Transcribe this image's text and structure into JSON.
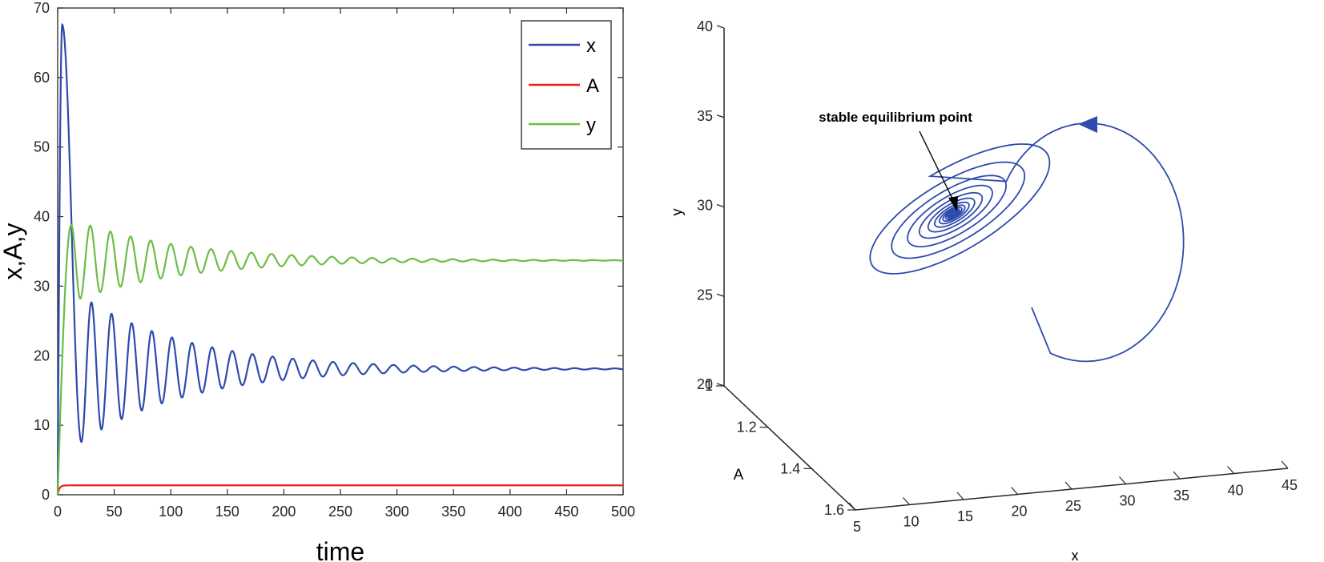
{
  "chart_data": [
    {
      "type": "line",
      "xlabel": "time",
      "ylabel": "x,A,y",
      "xlim": [
        0,
        500
      ],
      "ylim": [
        0,
        70
      ],
      "xticks": [
        "0",
        "50",
        "100",
        "150",
        "200",
        "250",
        "300",
        "350",
        "400",
        "450",
        "500"
      ],
      "yticks": [
        "0",
        "10",
        "20",
        "30",
        "40",
        "50",
        "60",
        "70"
      ],
      "legend": {
        "position": "top-right",
        "entries": [
          "x",
          "A",
          "y"
        ]
      },
      "series": [
        {
          "name": "x",
          "color": "#2e4bad",
          "t_max": 500,
          "start": 0,
          "peak_time": 4,
          "peak_value": 67.6,
          "equilibrium": 18.1,
          "first_oscillation_amplitude": 10.5,
          "decay_time": 95,
          "period": 17.8,
          "first_trough_time": 21
        },
        {
          "name": "A",
          "color": "#e8221c",
          "t_max": 500,
          "start": 0,
          "equilibrium": 1.35
        },
        {
          "name": "y",
          "color": "#6cbd45",
          "t_max": 500,
          "start": 0,
          "peak_time": 12,
          "peak_value": 38.8,
          "equilibrium": 33.7,
          "first_oscillation_amplitude": 5.5,
          "decay_time": 95,
          "period": 17.8,
          "first_trough_time": 20
        }
      ]
    },
    {
      "type": "line3d",
      "xlabel": "x",
      "ylabel": "A",
      "zlabel": "y",
      "xlim": [
        5,
        45
      ],
      "ylim": [
        1,
        1.6
      ],
      "zlim": [
        20,
        40
      ],
      "xticks": [
        "5",
        "10",
        "15",
        "20",
        "25",
        "30",
        "35",
        "40",
        "45"
      ],
      "yticks": [
        "1",
        "1.2",
        "1.4",
        "1.6"
      ],
      "zticks": [
        "20",
        "25",
        "30",
        "35",
        "40"
      ],
      "annotation": "stable equilibrium point",
      "equilibrium_point": {
        "x": 18.1,
        "A": 1.35,
        "y": 33.7
      },
      "series": [
        {
          "name": "trajectory",
          "color": "#2e4bad",
          "start": {
            "x": 1,
            "A": 1.0,
            "y": 1
          }
        }
      ]
    }
  ]
}
